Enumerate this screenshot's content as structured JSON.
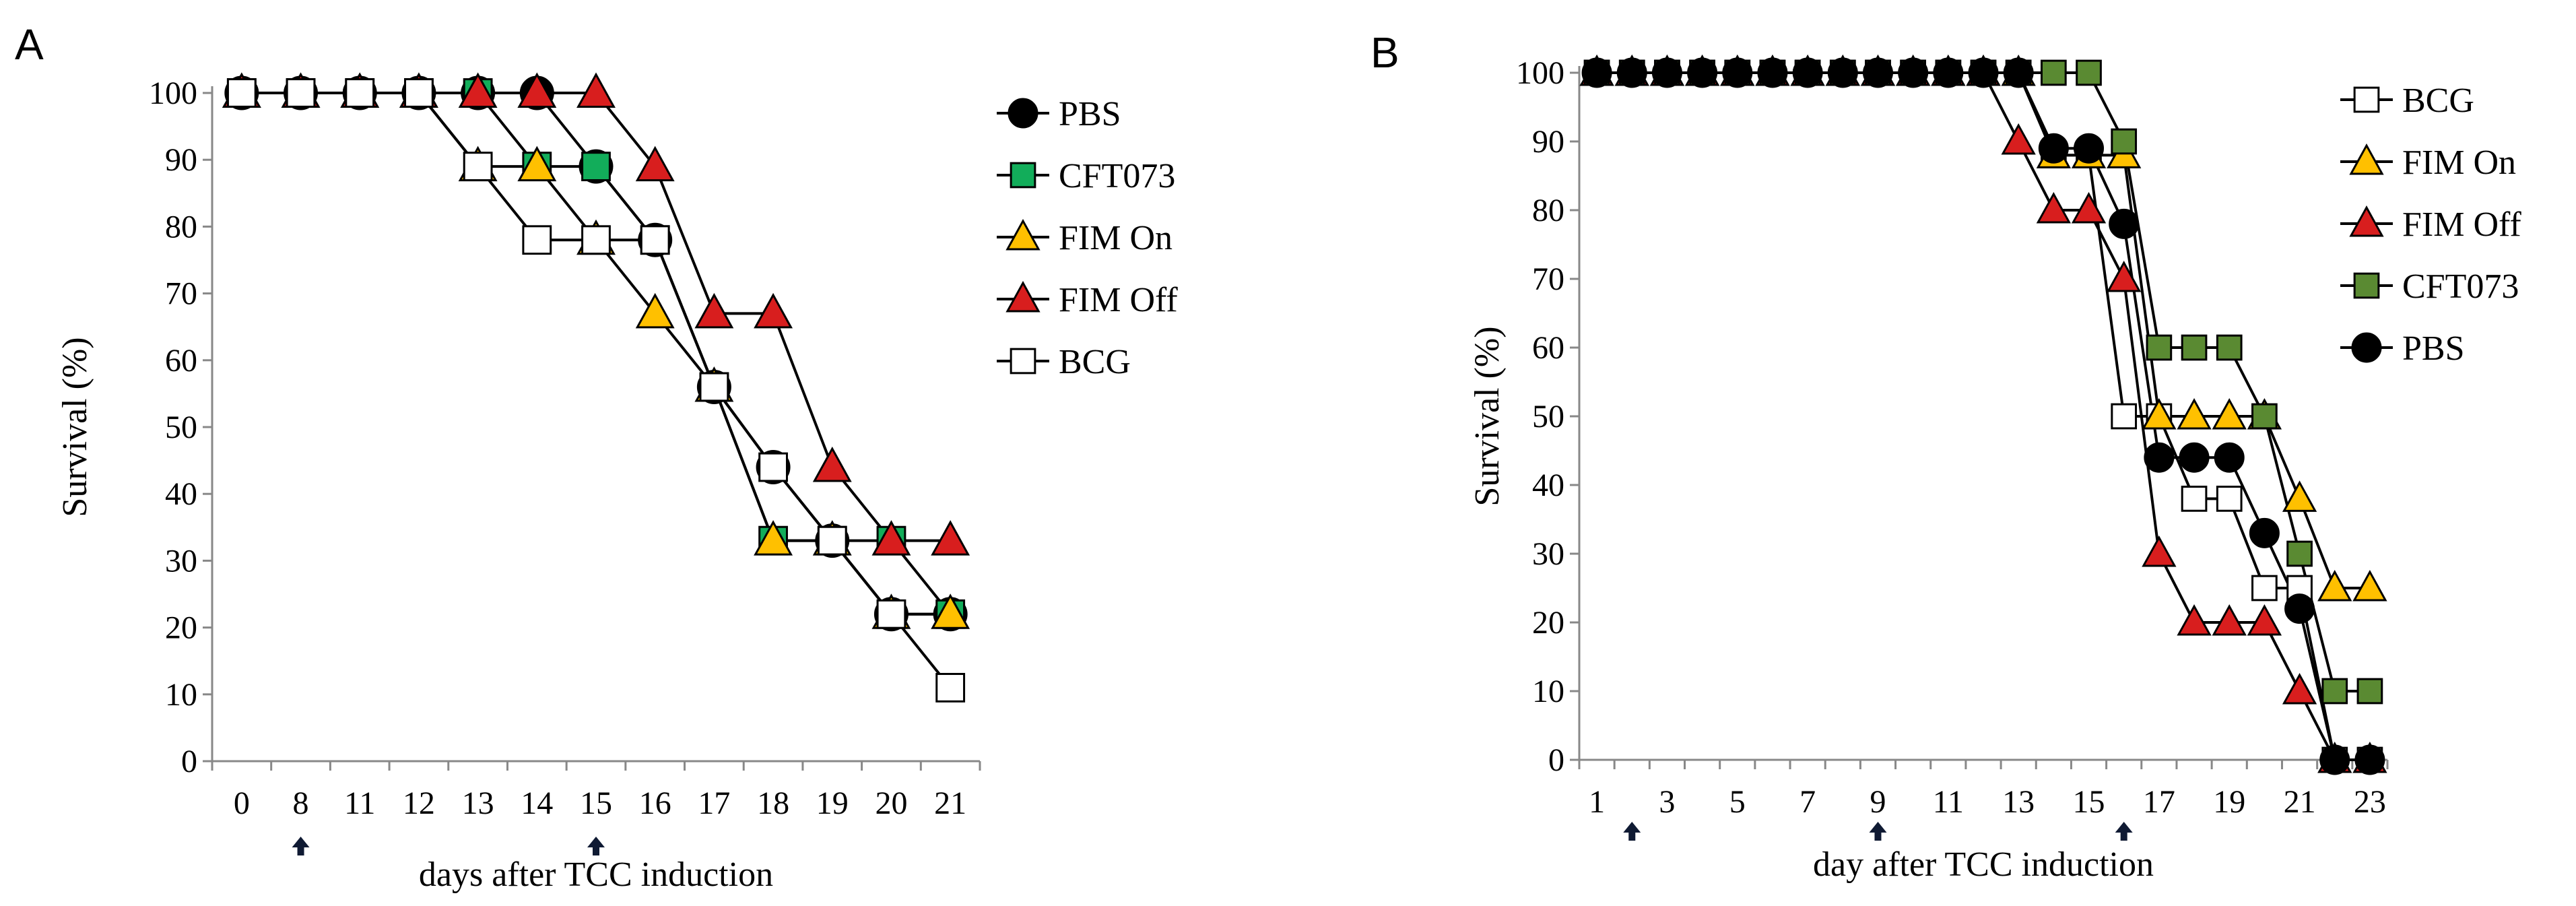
{
  "colors": {
    "axis": "#888888",
    "line": "#000000",
    "cft073_green": "#12ad5a",
    "cft073_olive": "#5a8a32",
    "fim_on_yellow": "#ffc000",
    "fim_off_red": "#d81e1e",
    "open_marker": "#ffffff",
    "pbs_black": "#000000",
    "arrow": "#0f1a33"
  },
  "chart_data": [
    {
      "panel": "A",
      "type": "line",
      "xlabel": "days after TCC induction",
      "ylabel": "Survival (%)",
      "ylim": [
        0,
        100
      ],
      "yticks": [
        0,
        10,
        20,
        30,
        40,
        50,
        60,
        70,
        80,
        90,
        100
      ],
      "categories": [
        "0",
        "8",
        "11",
        "12",
        "13",
        "14",
        "15",
        "16",
        "17",
        "18",
        "19",
        "20",
        "21"
      ],
      "arrows_at": [
        "8",
        "15"
      ],
      "legend_position": "right",
      "legend": [
        "PBS",
        "CFT073",
        "FIM On",
        "FIM Off",
        "BCG"
      ],
      "series": [
        {
          "name": "PBS",
          "marker": "circle",
          "fill": "#000000",
          "values": [
            100,
            100,
            100,
            100,
            100,
            100,
            89,
            78,
            56,
            44,
            33,
            22,
            22
          ]
        },
        {
          "name": "CFT073",
          "marker": "square",
          "fill": "#12ad5a",
          "values": [
            100,
            100,
            100,
            100,
            100,
            89,
            89,
            78,
            56,
            33,
            33,
            33,
            22
          ]
        },
        {
          "name": "FIM On",
          "marker": "triangle",
          "fill": "#ffc000",
          "values": [
            100,
            100,
            100,
            100,
            89,
            89,
            78,
            67,
            56,
            33,
            33,
            22,
            22
          ]
        },
        {
          "name": "FIM Off",
          "marker": "triangle",
          "fill": "#d81e1e",
          "values": [
            100,
            100,
            100,
            100,
            100,
            100,
            100,
            89,
            67,
            67,
            44,
            33,
            33
          ]
        },
        {
          "name": "BCG",
          "marker": "square",
          "fill": "#ffffff",
          "values": [
            100,
            100,
            100,
            100,
            89,
            78,
            78,
            78,
            56,
            44,
            33,
            22,
            11
          ]
        }
      ]
    },
    {
      "panel": "B",
      "type": "line",
      "xlabel": "day after TCC induction",
      "ylabel": "Survival (%)",
      "ylim": [
        0,
        100
      ],
      "yticks": [
        0,
        10,
        20,
        30,
        40,
        50,
        60,
        70,
        80,
        90,
        100
      ],
      "xlim": [
        1,
        23
      ],
      "xticks": [
        "1",
        "3",
        "5",
        "7",
        "9",
        "11",
        "13",
        "15",
        "17",
        "19",
        "21",
        "23"
      ],
      "arrows_at_day": [
        2,
        9,
        16
      ],
      "legend_position": "right",
      "legend": [
        "BCG",
        "FIM On",
        "FIM Off",
        "CFT073",
        "PBS"
      ],
      "series": [
        {
          "name": "BCG",
          "marker": "square",
          "fill": "#ffffff",
          "points": [
            [
              1,
              100
            ],
            [
              2,
              100
            ],
            [
              3,
              100
            ],
            [
              4,
              100
            ],
            [
              5,
              100
            ],
            [
              6,
              100
            ],
            [
              7,
              100
            ],
            [
              8,
              100
            ],
            [
              9,
              100
            ],
            [
              10,
              100
            ],
            [
              11,
              100
            ],
            [
              12,
              100
            ],
            [
              13,
              100
            ],
            [
              14,
              88
            ],
            [
              15,
              88
            ],
            [
              16,
              50
            ],
            [
              17,
              50
            ],
            [
              18,
              38
            ],
            [
              19,
              38
            ],
            [
              20,
              25
            ],
            [
              21,
              25
            ],
            [
              22,
              0
            ],
            [
              23,
              0
            ]
          ]
        },
        {
          "name": "FIM On",
          "marker": "triangle",
          "fill": "#ffc000",
          "points": [
            [
              1,
              100
            ],
            [
              2,
              100
            ],
            [
              3,
              100
            ],
            [
              4,
              100
            ],
            [
              5,
              100
            ],
            [
              6,
              100
            ],
            [
              7,
              100
            ],
            [
              8,
              100
            ],
            [
              9,
              100
            ],
            [
              10,
              100
            ],
            [
              11,
              100
            ],
            [
              12,
              100
            ],
            [
              13,
              100
            ],
            [
              14,
              88
            ],
            [
              15,
              88
            ],
            [
              16,
              88
            ],
            [
              17,
              50
            ],
            [
              18,
              50
            ],
            [
              19,
              50
            ],
            [
              20,
              50
            ],
            [
              21,
              38
            ],
            [
              22,
              25
            ],
            [
              23,
              25
            ]
          ]
        },
        {
          "name": "FIM Off",
          "marker": "triangle",
          "fill": "#d81e1e",
          "points": [
            [
              1,
              100
            ],
            [
              2,
              100
            ],
            [
              3,
              100
            ],
            [
              4,
              100
            ],
            [
              5,
              100
            ],
            [
              6,
              100
            ],
            [
              7,
              100
            ],
            [
              8,
              100
            ],
            [
              9,
              100
            ],
            [
              10,
              100
            ],
            [
              11,
              100
            ],
            [
              12,
              100
            ],
            [
              13,
              90
            ],
            [
              14,
              80
            ],
            [
              15,
              80
            ],
            [
              16,
              70
            ],
            [
              17,
              30
            ],
            [
              18,
              20
            ],
            [
              19,
              20
            ],
            [
              20,
              20
            ],
            [
              21,
              10
            ],
            [
              22,
              0
            ],
            [
              23,
              0
            ]
          ]
        },
        {
          "name": "CFT073",
          "marker": "square",
          "fill": "#5a8a32",
          "points": [
            [
              1,
              100
            ],
            [
              2,
              100
            ],
            [
              3,
              100
            ],
            [
              4,
              100
            ],
            [
              5,
              100
            ],
            [
              6,
              100
            ],
            [
              7,
              100
            ],
            [
              8,
              100
            ],
            [
              9,
              100
            ],
            [
              10,
              100
            ],
            [
              11,
              100
            ],
            [
              12,
              100
            ],
            [
              13,
              100
            ],
            [
              14,
              100
            ],
            [
              15,
              100
            ],
            [
              16,
              90
            ],
            [
              17,
              60
            ],
            [
              18,
              60
            ],
            [
              19,
              60
            ],
            [
              20,
              50
            ],
            [
              21,
              30
            ],
            [
              22,
              10
            ],
            [
              23,
              10
            ]
          ]
        },
        {
          "name": "PBS",
          "marker": "circle",
          "fill": "#000000",
          "points": [
            [
              1,
              100
            ],
            [
              2,
              100
            ],
            [
              3,
              100
            ],
            [
              4,
              100
            ],
            [
              5,
              100
            ],
            [
              6,
              100
            ],
            [
              7,
              100
            ],
            [
              8,
              100
            ],
            [
              9,
              100
            ],
            [
              10,
              100
            ],
            [
              11,
              100
            ],
            [
              12,
              100
            ],
            [
              13,
              100
            ],
            [
              14,
              89
            ],
            [
              15,
              89
            ],
            [
              16,
              78
            ],
            [
              17,
              44
            ],
            [
              18,
              44
            ],
            [
              19,
              44
            ],
            [
              20,
              33
            ],
            [
              21,
              22
            ],
            [
              22,
              0
            ],
            [
              23,
              0
            ]
          ]
        }
      ]
    }
  ]
}
